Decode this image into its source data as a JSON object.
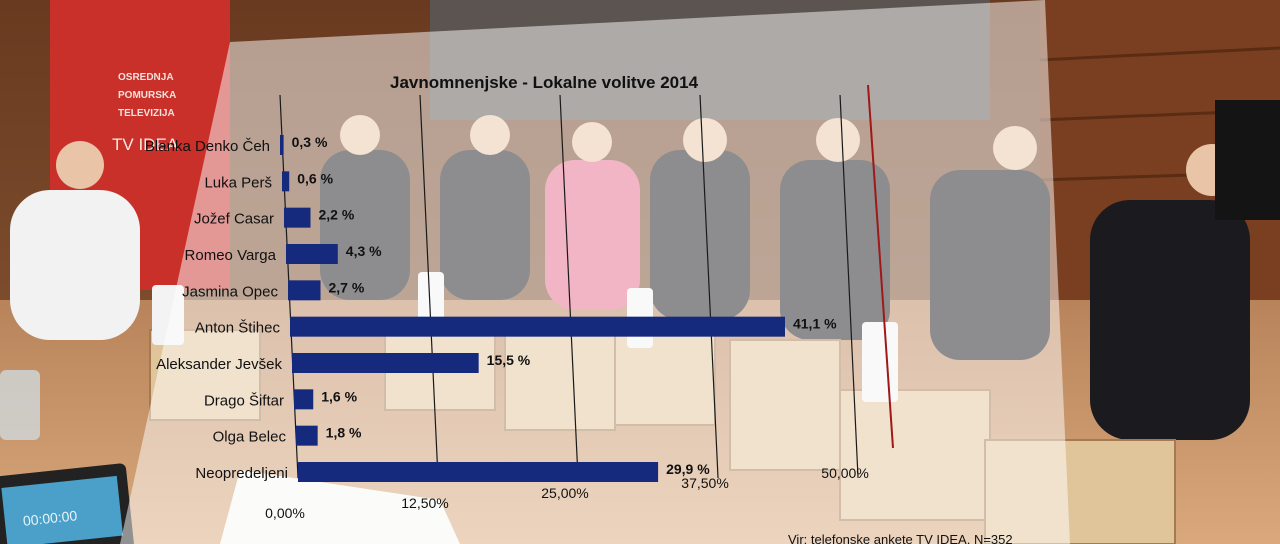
{
  "backdrop": {
    "sign_lines": [
      "OSREDNJA",
      "POMURSKA",
      "TELEVIZIJA"
    ],
    "sign_logo": "TV IDEA",
    "tablet_time": "00:00:00"
  },
  "chart_data": {
    "type": "bar",
    "orientation": "horizontal",
    "title": "Javnomnenjske - Lokalne volitve 2014",
    "categories": [
      "Blanka Denko Čeh",
      "Luka Perš",
      "Jožef Casar",
      "Romeo Varga",
      "Jasmina Opec",
      "Anton Štihec",
      "Aleksander Jevšek",
      "Drago Šiftar",
      "Olga Belec",
      "Neopredeljeni"
    ],
    "values": [
      0.3,
      0.6,
      2.2,
      4.3,
      2.7,
      41.1,
      15.5,
      1.6,
      1.8,
      29.9
    ],
    "value_labels": [
      "0,3 %",
      "0,6 %",
      "2,2 %",
      "4,3 %",
      "2,7 %",
      "41,1 %",
      "15,5 %",
      "1,6 %",
      "1,8 %",
      "29,9 %"
    ],
    "x_ticks": [
      0,
      12.5,
      25,
      37.5,
      50
    ],
    "x_tick_labels": [
      "0,00%",
      "12,50%",
      "25,00%",
      "37,50%",
      "50,00%"
    ],
    "xlim": [
      0,
      50
    ],
    "threshold": 50,
    "bar_color": "#152a7c",
    "threshold_color": "#a01818",
    "source": "Vir: telefonske ankete TV IDEA, N=352",
    "grid": true,
    "legend": "none"
  }
}
